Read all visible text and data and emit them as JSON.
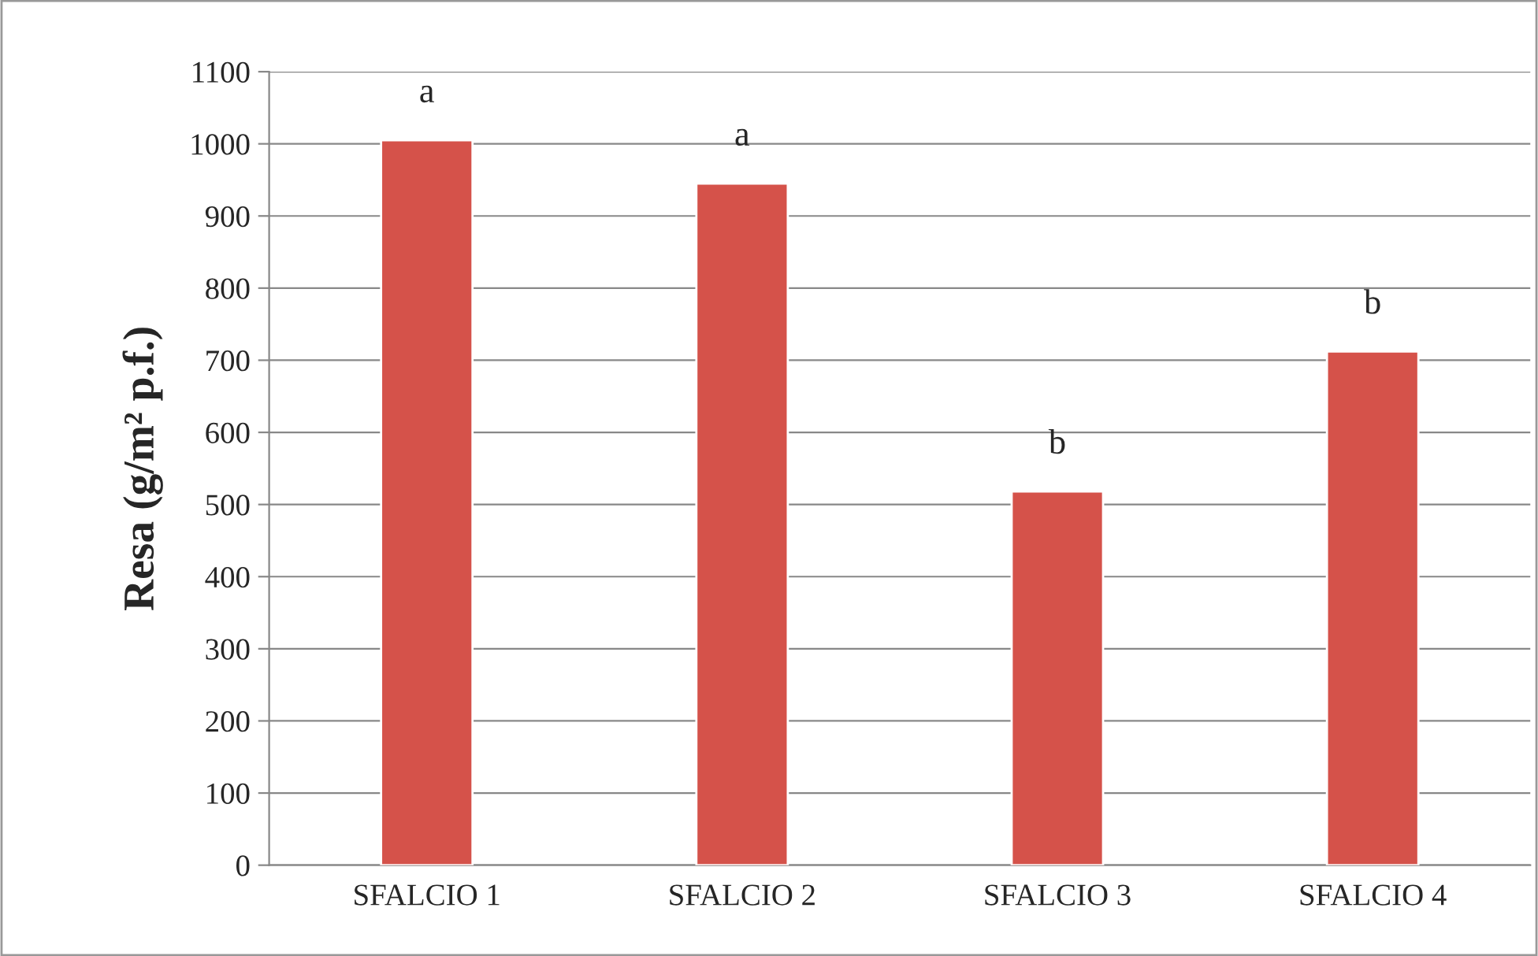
{
  "chart_data": {
    "type": "bar",
    "ylabel": "Resa (g/m² p.f.)",
    "categories": [
      "SFALCIO 1",
      "SFALCIO 2",
      "SFALCIO 3",
      "SFALCIO 4"
    ],
    "series": [
      {
        "color": "#d5524a",
        "values": [
          1005,
          945,
          518,
          712
        ],
        "value_labels": [
          "a",
          "a",
          "b",
          "b"
        ]
      }
    ],
    "ylim": [
      0,
      1100
    ],
    "yticks": [
      0,
      100,
      200,
      300,
      400,
      500,
      600,
      700,
      800,
      900,
      1000,
      1100
    ],
    "grid": "y",
    "legend": false
  }
}
